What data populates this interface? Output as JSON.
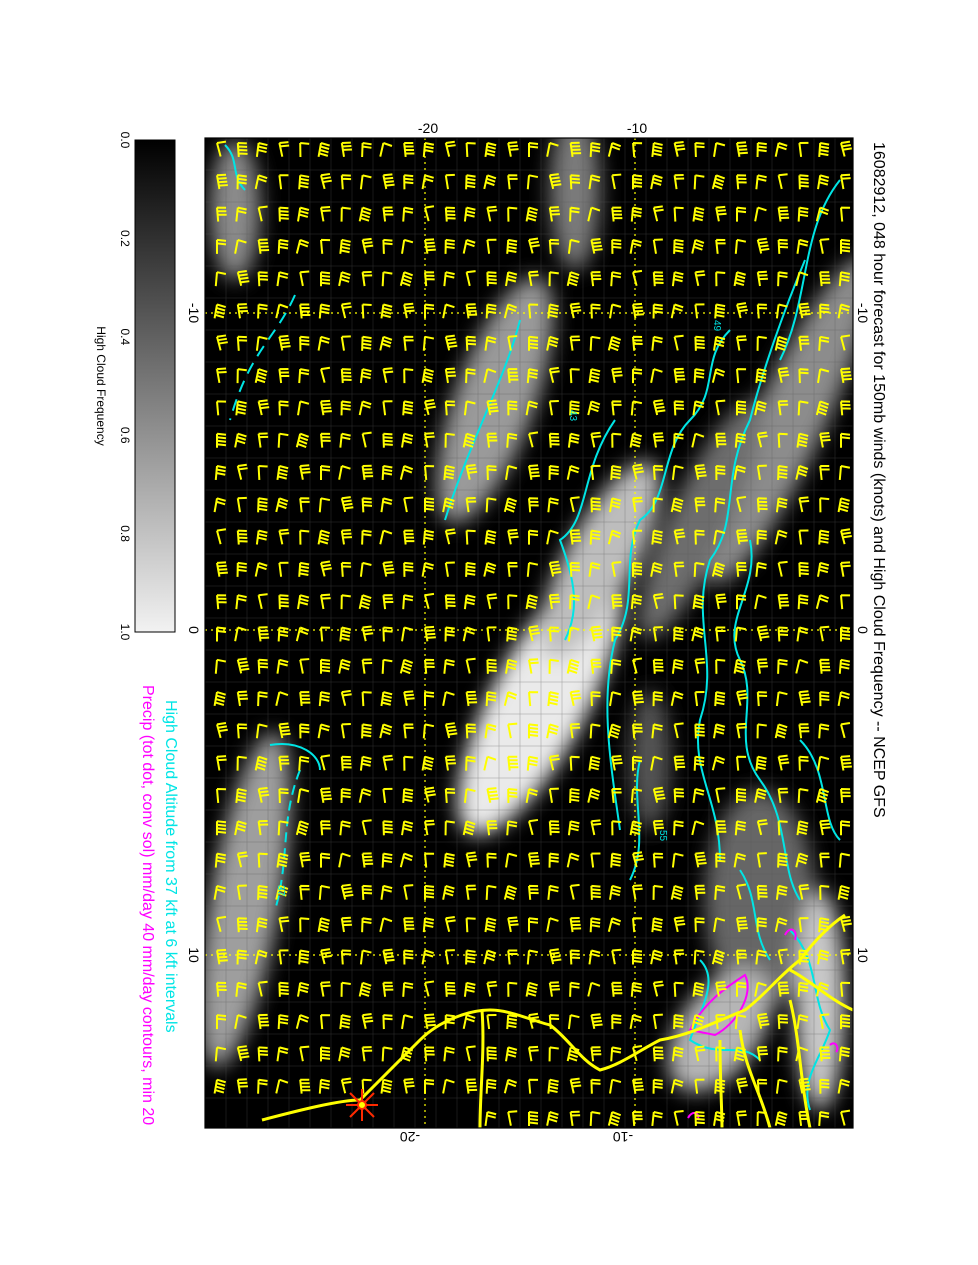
{
  "title": "16082912, 048 hour forecast for 150mb winds (knots) and High Cloud Frequency -- NCEP GFS",
  "subtitle_cyan": "High Cloud Altitude from 37 kft at 6 kft intervals",
  "subtitle_magenta": "Precip (tot dot, conv sol) mm/day 40 mm/day contours, min 20",
  "colorbar": {
    "label": "High Cloud Frequency",
    "ticks": [
      "0.0",
      "0.2",
      "0.4",
      "0.6",
      "0.8",
      "1.0"
    ]
  },
  "axes": {
    "top_ticks": [
      "-20",
      "-10"
    ],
    "bottom_ticks": [
      "-20",
      "-10"
    ],
    "left_ticks": [
      "-10",
      "0",
      "10"
    ],
    "right_ticks": [
      "-10",
      "0",
      "10"
    ]
  },
  "contour_labels": [
    "37",
    "43",
    "49",
    "55"
  ],
  "colors": {
    "background": "#000000",
    "wind_barbs": "#ffff00",
    "coastline": "#ffff00",
    "cloud_altitude_contours": "#00e5e5",
    "precip_contours": "#ff00ff",
    "marker": "#ff2a00"
  },
  "icons": [
    "wind-barb-icon",
    "star-marker-icon"
  ]
}
